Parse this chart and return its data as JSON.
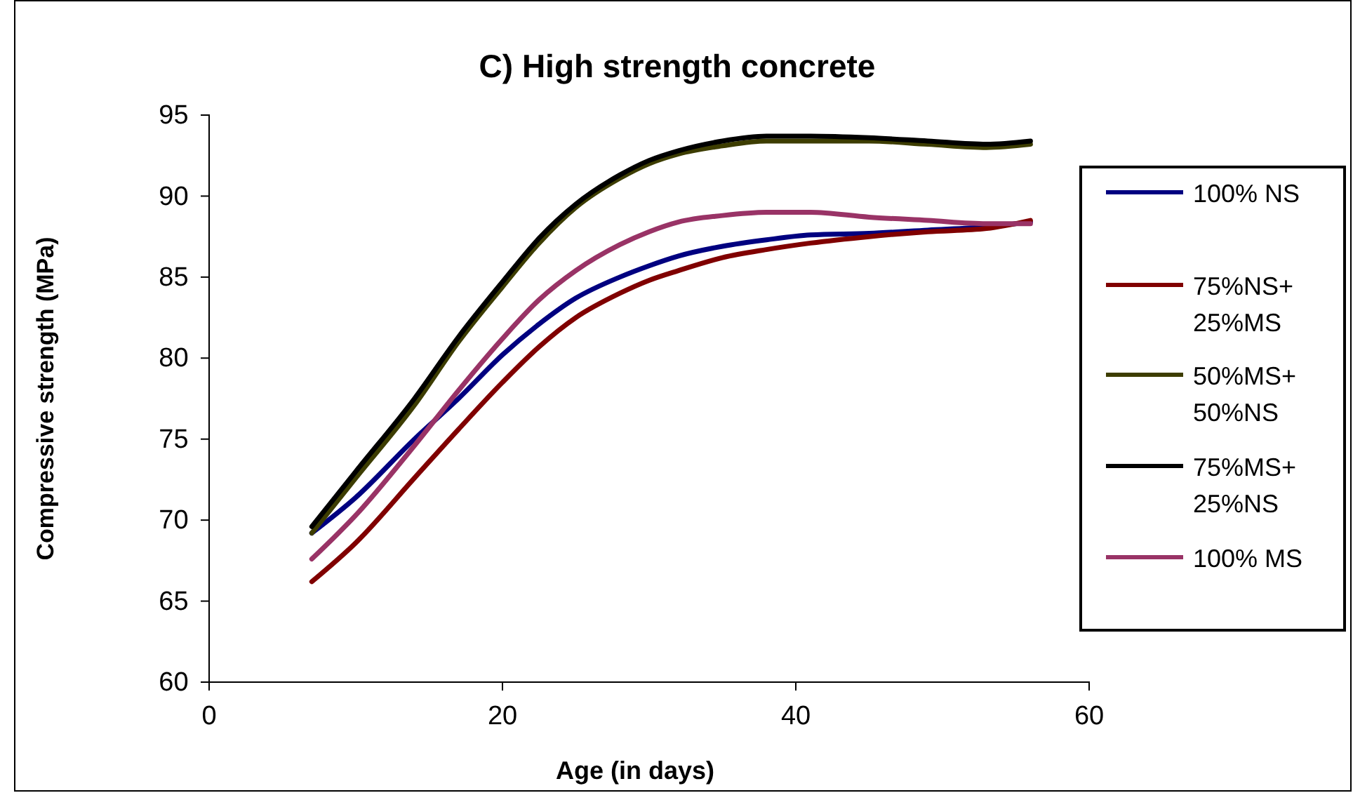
{
  "chart_data": {
    "type": "line",
    "title": "C) High strength concrete",
    "xlabel": "Age (in days)",
    "ylabel": "Compressive strength (MPa)",
    "x": [
      7,
      10,
      14,
      17,
      20,
      22.5,
      25,
      28,
      30,
      32,
      35,
      38,
      41,
      45,
      49,
      53,
      56
    ],
    "xlim": [
      0,
      60
    ],
    "xticks": [
      0,
      20,
      40,
      60
    ],
    "ylim": [
      60,
      95
    ],
    "yticks": [
      60,
      65,
      70,
      75,
      80,
      85,
      90,
      95
    ],
    "grid": false,
    "legend": "right",
    "marker": "none",
    "line_style": "solid",
    "series": [
      {
        "name": "100% NS",
        "color": "#000080",
        "values": [
          69.2,
          71.4,
          75,
          77.5,
          80.2,
          82.1,
          83.7,
          85,
          85.7,
          86.3,
          86.9,
          87.3,
          87.6,
          87.7,
          87.9,
          88.1,
          88.4
        ]
      },
      {
        "name": "75%NS+\n25%MS",
        "color": "#800000",
        "values": [
          66.2,
          68.6,
          72.6,
          75.6,
          78.5,
          80.7,
          82.5,
          84,
          84.8,
          85.4,
          86.2,
          86.7,
          87.1,
          87.5,
          87.8,
          88,
          88.5
        ]
      },
      {
        "name": "50%MS+\n50%NS",
        "color": "#3d3d00",
        "values": [
          69.2,
          72.6,
          77.1,
          81,
          84.4,
          87.1,
          89.3,
          91.1,
          92,
          92.6,
          93.1,
          93.4,
          93.4,
          93.4,
          93.2,
          93,
          93.2
        ]
      },
      {
        "name": "75%MS+\n25%NS",
        "color": "#000000",
        "values": [
          69.6,
          73,
          77.5,
          81.3,
          84.7,
          87.4,
          89.5,
          91.3,
          92.2,
          92.8,
          93.4,
          93.7,
          93.7,
          93.6,
          93.4,
          93.2,
          93.4
        ]
      },
      {
        "name": "100% MS",
        "color": "#993366",
        "values": [
          67.6,
          70.3,
          74.6,
          78,
          81.2,
          83.6,
          85.4,
          87,
          87.8,
          88.4,
          88.8,
          89,
          89,
          88.7,
          88.5,
          88.3,
          88.3
        ]
      }
    ]
  }
}
